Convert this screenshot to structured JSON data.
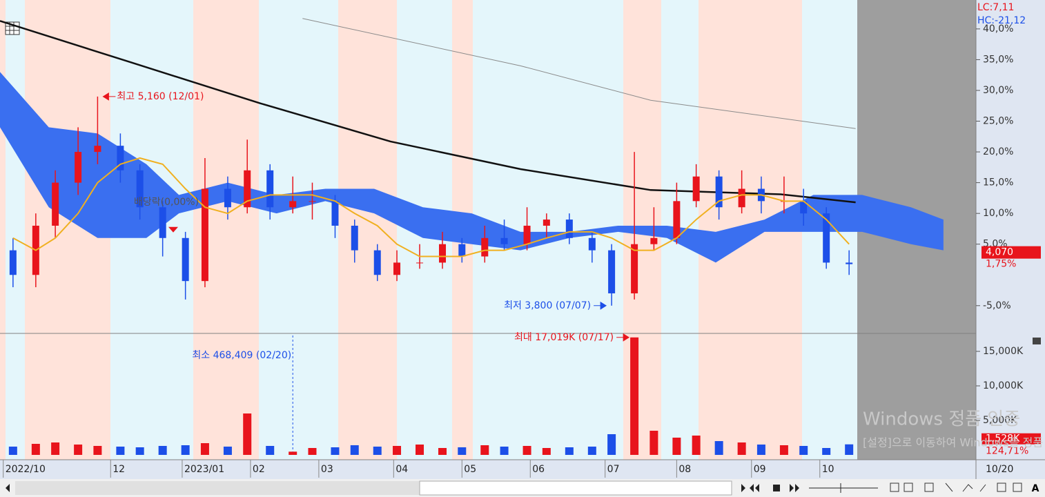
{
  "chart_data": [
    {
      "type": "candlestick",
      "xlim": [
        0,
        300
      ],
      "ylim": [
        -9.4,
        44.7
      ],
      "yticks": [
        {
          "value": 40,
          "label": "40,0%"
        },
        {
          "value": 35,
          "label": "35,0%"
        },
        {
          "value": 30,
          "label": "30,0%"
        },
        {
          "value": 25,
          "label": "25,0%"
        },
        {
          "value": 20,
          "label": "20,0%"
        },
        {
          "value": 15,
          "label": "15,0%"
        },
        {
          "value": 10,
          "label": "10,0%"
        },
        {
          "value": 5,
          "label": "5,0%"
        },
        {
          "value": -5,
          "label": "-5,0%"
        }
      ],
      "up_color": "#e8141c",
      "down_color": "#1c4fe8",
      "x": [
        4,
        11,
        17,
        24,
        30,
        37,
        43,
        50,
        57,
        63,
        70,
        76,
        83,
        90,
        96,
        103,
        109,
        116,
        122,
        129,
        136,
        142,
        149,
        155,
        162,
        168,
        175,
        182,
        188,
        195,
        201,
        208,
        214,
        221,
        228,
        234,
        241,
        247,
        254,
        261
      ],
      "open": [
        4,
        0,
        8,
        15,
        20,
        21,
        17,
        11,
        6,
        -1,
        14,
        11,
        17,
        11,
        12,
        12,
        8,
        4,
        0,
        2,
        2,
        5,
        3,
        6,
        5,
        8,
        9,
        6,
        4,
        -3,
        5,
        6,
        12,
        16,
        11,
        14,
        12,
        12,
        10,
        2
      ],
      "high": [
        6,
        10,
        17,
        24,
        29,
        23,
        18,
        12,
        7,
        19,
        16,
        22,
        18,
        16,
        15,
        13,
        9,
        5,
        4,
        5,
        7,
        6,
        8,
        9,
        11,
        10,
        10,
        7,
        5,
        20,
        11,
        15,
        18,
        17,
        17,
        16,
        16,
        14,
        11,
        4
      ],
      "low": [
        -2,
        -2,
        6,
        13,
        18,
        15,
        9,
        3,
        -4,
        -2,
        9,
        10,
        9,
        10,
        9,
        6,
        2,
        -1,
        -1,
        1,
        1,
        2,
        2,
        4,
        4,
        6,
        5,
        2,
        -5,
        -4,
        4,
        5,
        11,
        9,
        10,
        10,
        10,
        8,
        1,
        0
      ],
      "close": [
        0,
        8,
        15,
        20,
        21,
        17,
        11,
        6,
        -1,
        14,
        11,
        17,
        11,
        12,
        12,
        8,
        4,
        0,
        2,
        2,
        5,
        3,
        6,
        5,
        8,
        9,
        6,
        4,
        -3,
        5,
        6,
        12,
        16,
        11,
        14,
        12,
        12,
        10,
        2,
        1.75
      ],
      "ma": {
        "color": "#f0b020",
        "values": [
          6,
          4,
          6,
          10,
          15,
          18,
          19,
          18,
          14,
          11,
          10,
          12,
          13,
          13,
          13,
          12,
          10,
          8,
          5,
          3,
          3,
          3,
          4,
          4,
          5,
          6,
          7,
          7,
          6,
          4,
          4,
          6,
          9,
          12,
          13,
          13,
          12,
          12,
          9,
          5
        ]
      },
      "long_ma": {
        "color": "#111111",
        "x": [
          0,
          40,
          80,
          120,
          160,
          200,
          240,
          263
        ],
        "values": [
          41.3,
          34.6,
          27.9,
          21.7,
          17.2,
          13.8,
          13.1,
          11.8
        ]
      },
      "longer_ma": {
        "color": "#8a8a8a",
        "x": [
          93,
          160,
          200,
          263
        ],
        "values": [
          41.7,
          34,
          28.4,
          23.8
        ]
      },
      "cloud": {
        "color": "#3a6ff0",
        "x": [
          0,
          15,
          30,
          45,
          55,
          70,
          85,
          100,
          115,
          130,
          145,
          160,
          175,
          190,
          205,
          220,
          235,
          250,
          265,
          280,
          290
        ],
        "upper": [
          33,
          24,
          23,
          18,
          13,
          15,
          13,
          14,
          14,
          11,
          10,
          7,
          7,
          8,
          8,
          7,
          9,
          13,
          13,
          11,
          9
        ],
        "lower": [
          24,
          11,
          6,
          6,
          10,
          12,
          10,
          12,
          10,
          6,
          5,
          4,
          6,
          7,
          6,
          2,
          7,
          7,
          7,
          5,
          4
        ]
      },
      "high_label": "최고 5,160 (12/01)",
      "low_label": "최저 3,800 (07/07)",
      "dividend_label": "배당락(0,00%)",
      "lc_label": "LC:7,11",
      "hc_label": "HC:-21,12",
      "current_price_label": "4,070",
      "current_change_label": "1,75%"
    },
    {
      "type": "bar",
      "xlim": [
        0,
        300
      ],
      "ylim": [
        0,
        17500
      ],
      "yticks": [
        {
          "value": 15000,
          "label": "15,000K"
        },
        {
          "value": 10000,
          "label": "10,000K"
        },
        {
          "value": 5000,
          "label": "5,000K"
        }
      ],
      "xticks": [
        {
          "value": 1,
          "label": "2022/10"
        },
        {
          "value": 34,
          "label": "12"
        },
        {
          "value": 56,
          "label": "2023/01"
        },
        {
          "value": 77,
          "label": "02"
        },
        {
          "value": 98,
          "label": "03"
        },
        {
          "value": 121,
          "label": "04"
        },
        {
          "value": 142,
          "label": "05"
        },
        {
          "value": 163,
          "label": "06"
        },
        {
          "value": 186,
          "label": "07"
        },
        {
          "value": 208,
          "label": "08"
        },
        {
          "value": 231,
          "label": "09"
        },
        {
          "value": 252,
          "label": "10"
        }
      ],
      "x_end_label": "10/20",
      "values": [
        1200,
        1600,
        1800,
        1500,
        1300,
        1200,
        1100,
        1300,
        1400,
        1700,
        1200,
        6000,
        1300,
        468.409,
        1000,
        1100,
        1400,
        1200,
        1300,
        1500,
        1000,
        1100,
        1400,
        1200,
        1300,
        1000,
        1100,
        1200,
        3000,
        17019,
        3500,
        2500,
        2800,
        2000,
        1800,
        1500,
        1400,
        1300,
        1000,
        1528
      ],
      "max_label": "최대 17,019K (07/17)",
      "min_label": "최소 468,409 (02/20)",
      "current_volume_label": "1,528K",
      "volume_ratio_label": "124,71%"
    }
  ],
  "watermark": {
    "title": "Windows 정품 인증",
    "subtitle": "[설정]으로 이동하여 Windows를 정품 인증합니다."
  }
}
